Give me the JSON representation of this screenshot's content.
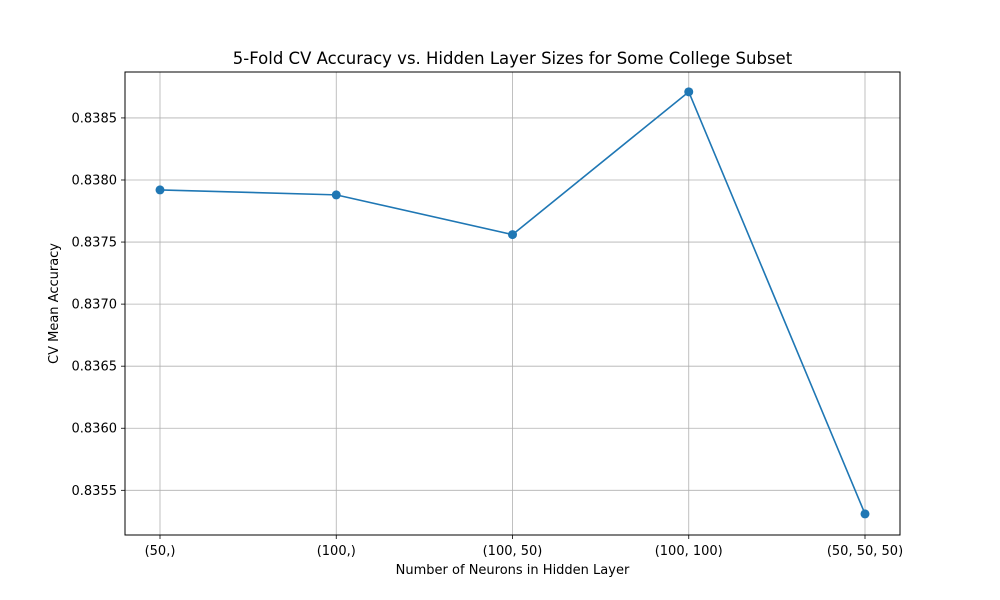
{
  "chart_data": {
    "type": "line",
    "title": "5-Fold CV Accuracy vs. Hidden Layer Sizes for Some College Subset",
    "xlabel": "Number of Neurons in Hidden Layer",
    "ylabel": "CV Mean Accuracy",
    "categories": [
      "(50,)",
      "(100,)",
      "(100, 50)",
      "(100, 100)",
      "(50, 50, 50)"
    ],
    "series": [
      {
        "values": [
          0.83792,
          0.83788,
          0.83756,
          0.83871,
          0.83531
        ],
        "color": "#1f77b4",
        "marker": "circle"
      }
    ],
    "ylim": [
      0.83514,
      0.83887
    ],
    "yticks": [
      0.8355,
      0.836,
      0.8365,
      0.837,
      0.8375,
      0.838,
      0.8385
    ],
    "ytick_labels": [
      "0.8355",
      "0.8360",
      "0.8365",
      "0.8370",
      "0.8375",
      "0.8380",
      "0.8385"
    ],
    "grid": true
  }
}
